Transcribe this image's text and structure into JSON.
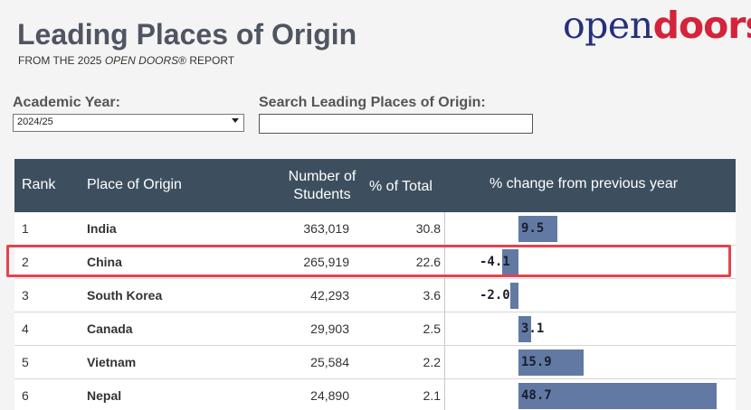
{
  "header": {
    "title": "Leading Places of Origin",
    "subtitle_prefix": "FROM THE 2025 ",
    "subtitle_italic": "OPEN DOORS",
    "subtitle_suffix": "® REPORT",
    "logo_open": "open",
    "logo_doors": "doors",
    "logo_mark": "®"
  },
  "filters": {
    "year_label": "Academic Year:",
    "year_value": "2024/25",
    "search_label": "Search Leading Places of Origin:",
    "search_value": ""
  },
  "table": {
    "columns": {
      "rank": "Rank",
      "place": "Place of Origin",
      "students_line1": "Number of",
      "students_line2": "Students",
      "pct": "% of Total",
      "change": "% change from previous year"
    },
    "rows": [
      {
        "rank": "1",
        "place": "India",
        "students": "363,019",
        "pct": "30.8",
        "change": 9.5,
        "change_label": "9.5"
      },
      {
        "rank": "2",
        "place": "China",
        "students": "265,919",
        "pct": "22.6",
        "change": -4.1,
        "change_label": "-4.1"
      },
      {
        "rank": "3",
        "place": "South Korea",
        "students": "42,293",
        "pct": "3.6",
        "change": -2.0,
        "change_label": "-2.0"
      },
      {
        "rank": "4",
        "place": "Canada",
        "students": "29,903",
        "pct": "2.5",
        "change": 3.1,
        "change_label": "3.1"
      },
      {
        "rank": "5",
        "place": "Vietnam",
        "students": "25,584",
        "pct": "2.2",
        "change": 15.9,
        "change_label": "15.9"
      },
      {
        "rank": "6",
        "place": "Nepal",
        "students": "24,890",
        "pct": "2.1",
        "change": 48.7,
        "change_label": "48.7"
      }
    ]
  },
  "colors": {
    "header_bg": "#3d4f5e",
    "bar": "#627aa3",
    "highlight": "#e5424d",
    "logo_blue": "#26307a",
    "logo_red": "#d3243b"
  }
}
